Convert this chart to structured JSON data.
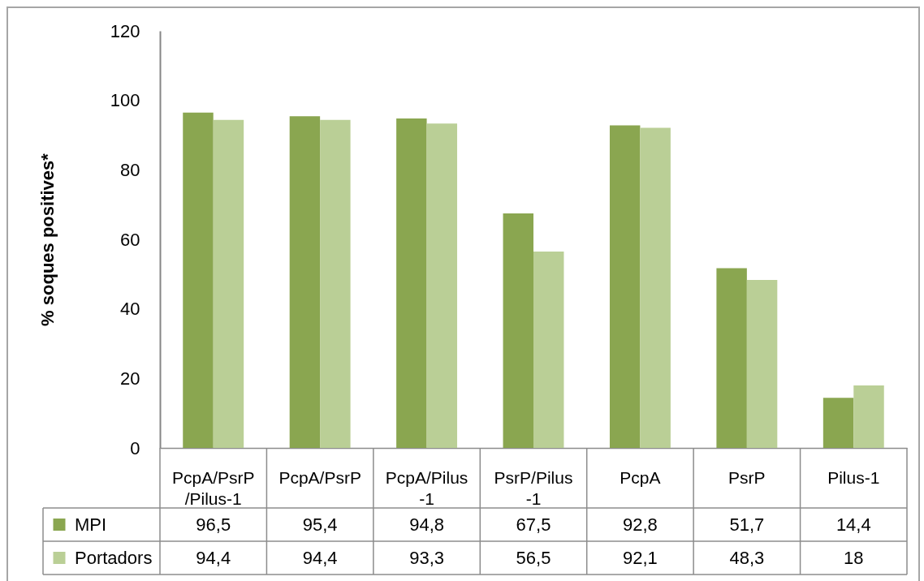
{
  "chart_data": {
    "type": "bar",
    "ylabel": "% soques positives*",
    "categories": [
      "PcpA/PsrP/Pilus-1",
      "PcpA/PsrP",
      "PcpA/Pilus-1",
      "PsrP/Pilus-1",
      "PcpA",
      "PsrP",
      "Pilus-1"
    ],
    "series": [
      {
        "name": "MPI",
        "color": "#8aa650",
        "values": [
          96.5,
          95.4,
          94.8,
          67.5,
          92.8,
          51.7,
          14.4
        ],
        "value_labels": [
          "96,5",
          "95,4",
          "94,8",
          "67,5",
          "92,8",
          "51,7",
          "14,4"
        ]
      },
      {
        "name": "Portadors",
        "color": "#bacf96",
        "values": [
          94.4,
          94.4,
          93.3,
          56.5,
          92.1,
          48.3,
          18
        ],
        "value_labels": [
          "94,4",
          "94,4",
          "93,3",
          "56,5",
          "92,1",
          "48,3",
          "18"
        ]
      }
    ],
    "ylim": [
      0,
      120
    ],
    "yticks": [
      0,
      20,
      40,
      60,
      80,
      100,
      120
    ],
    "grid": false,
    "legend": "bottom left"
  }
}
